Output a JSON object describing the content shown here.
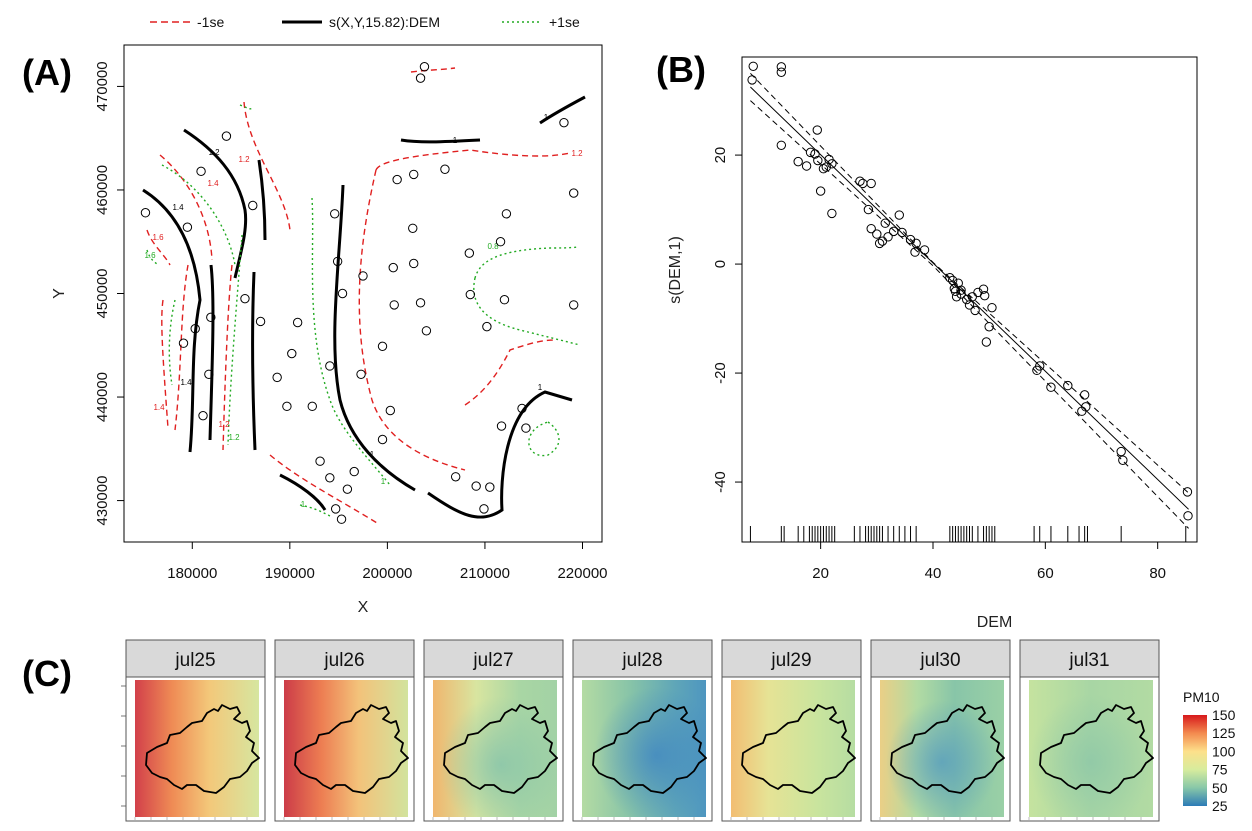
{
  "panels": {
    "a": "(A)",
    "b": "(B)",
    "c": "(C)"
  },
  "legend": [
    {
      "label": "-1se",
      "color": "#e02020",
      "style": "dashed"
    },
    {
      "label": "s(X,Y,15.82):DEM",
      "color": "#000000",
      "style": "solid"
    },
    {
      "label": "+1se",
      "color": "#22aa22",
      "style": "dotted"
    }
  ],
  "chart_data": [
    {
      "type": "scatter",
      "panel": "A",
      "xlabel": "X",
      "ylabel": "Y",
      "xlim": [
        173000,
        222000
      ],
      "ylim": [
        426000,
        474000
      ],
      "xticks": [
        180000,
        190000,
        200000,
        210000,
        220000
      ],
      "yticks": [
        430000,
        440000,
        450000,
        460000,
        470000
      ],
      "xtick_labels": [
        "180000",
        "190000",
        "200000",
        "210000",
        "220000"
      ],
      "ytick_labels": [
        "430000",
        "440000",
        "450000",
        "460000",
        "470000"
      ],
      "contour_labels": [
        "1.2",
        "1.2",
        "1.4",
        "1.4",
        "1.6",
        "1.6",
        "1.4",
        "1.4",
        "1.2",
        "1.2",
        "1",
        "1",
        "1",
        "0.8",
        "1",
        "1.2",
        "1",
        "1"
      ],
      "points": [
        [
          203800,
          471900
        ],
        [
          203400,
          470800
        ],
        [
          183500,
          465200
        ],
        [
          218100,
          466500
        ],
        [
          180900,
          461800
        ],
        [
          186200,
          458500
        ],
        [
          175200,
          457800
        ],
        [
          201000,
          461000
        ],
        [
          202700,
          461500
        ],
        [
          205900,
          462000
        ],
        [
          212200,
          457700
        ],
        [
          219100,
          459700
        ],
        [
          194600,
          457700
        ],
        [
          202600,
          456300
        ],
        [
          179500,
          456400
        ],
        [
          194900,
          453100
        ],
        [
          200600,
          452500
        ],
        [
          202700,
          452900
        ],
        [
          208400,
          453900
        ],
        [
          211600,
          455000
        ],
        [
          197500,
          451700
        ],
        [
          185400,
          449500
        ],
        [
          195400,
          450000
        ],
        [
          203400,
          449100
        ],
        [
          200700,
          448900
        ],
        [
          208500,
          449900
        ],
        [
          212000,
          449400
        ],
        [
          219100,
          448900
        ],
        [
          181900,
          447700
        ],
        [
          190800,
          447200
        ],
        [
          187000,
          447300
        ],
        [
          180300,
          446600
        ],
        [
          204000,
          446400
        ],
        [
          210200,
          446800
        ],
        [
          179100,
          445200
        ],
        [
          190200,
          444200
        ],
        [
          194100,
          443000
        ],
        [
          199500,
          444900
        ],
        [
          181700,
          442200
        ],
        [
          188700,
          441900
        ],
        [
          197300,
          442200
        ],
        [
          189700,
          439100
        ],
        [
          192300,
          439100
        ],
        [
          181100,
          438200
        ],
        [
          200300,
          438700
        ],
        [
          211700,
          437200
        ],
        [
          213800,
          438900
        ],
        [
          214200,
          437000
        ],
        [
          199500,
          435900
        ],
        [
          207000,
          432300
        ],
        [
          193100,
          433800
        ],
        [
          196600,
          432800
        ],
        [
          209100,
          431400
        ],
        [
          210500,
          431300
        ],
        [
          194100,
          432200
        ],
        [
          195900,
          431100
        ],
        [
          194700,
          429200
        ],
        [
          209900,
          429200
        ],
        [
          195300,
          428200
        ]
      ]
    },
    {
      "type": "scatter",
      "panel": "B",
      "xlabel": "DEM",
      "ylabel": "s(DEM,1)",
      "xlim": [
        6,
        87
      ],
      "ylim": [
        -51,
        38
      ],
      "xticks": [
        20,
        40,
        60,
        80
      ],
      "yticks": [
        -40,
        -20,
        0,
        20
      ],
      "xtick_labels": [
        "20",
        "40",
        "60",
        "80"
      ],
      "ytick_labels": [
        "-40",
        "-20",
        "0",
        "20"
      ],
      "fit_line": [
        [
          7.5,
          32.5
        ],
        [
          85.5,
          -45.0
        ]
      ],
      "upper_band": [
        [
          7.5,
          35.0
        ],
        [
          40,
          0.3
        ],
        [
          85.5,
          -42.0
        ]
      ],
      "lower_band": [
        [
          7.5,
          30.0
        ],
        [
          40,
          -0.3
        ],
        [
          85.5,
          -48.5
        ]
      ],
      "rug": [
        7.5,
        13,
        13.5,
        16,
        17,
        18,
        18.5,
        19,
        19.5,
        20,
        20.5,
        21,
        21.5,
        22,
        22.5,
        26,
        27,
        28,
        28.5,
        29,
        29.5,
        30,
        30.5,
        31,
        32,
        33,
        34,
        35,
        36,
        37,
        43,
        43.5,
        44,
        44.5,
        45,
        45.5,
        46,
        46.5,
        47,
        48,
        49,
        49.5,
        50,
        50.5,
        51,
        58,
        59,
        61,
        64,
        66,
        67,
        67.5,
        73.5,
        85
      ],
      "points": [
        [
          8,
          36.3
        ],
        [
          7.8,
          33.8
        ],
        [
          13,
          36.2
        ],
        [
          13,
          35.2
        ],
        [
          13,
          21.8
        ],
        [
          16,
          18.8
        ],
        [
          17.5,
          18
        ],
        [
          18.2,
          20.5
        ],
        [
          19,
          20.2
        ],
        [
          19.4,
          24.6
        ],
        [
          19.5,
          19
        ],
        [
          20,
          13.4
        ],
        [
          20.5,
          17.5
        ],
        [
          21,
          17.8
        ],
        [
          21.5,
          19.2
        ],
        [
          22,
          9.3
        ],
        [
          22,
          18.4
        ],
        [
          27,
          15.2
        ],
        [
          27.5,
          14.8
        ],
        [
          29,
          14.8
        ],
        [
          28.5,
          10
        ],
        [
          29,
          6.5
        ],
        [
          30,
          5.5
        ],
        [
          30.5,
          3.8
        ],
        [
          31,
          4.2
        ],
        [
          31.5,
          7.5
        ],
        [
          32,
          5
        ],
        [
          33,
          6
        ],
        [
          34,
          9
        ],
        [
          34.5,
          5.8
        ],
        [
          36,
          4.5
        ],
        [
          36.8,
          2.2
        ],
        [
          37,
          3.8
        ],
        [
          38.5,
          2.6
        ],
        [
          43,
          -2.5
        ],
        [
          43.5,
          -3
        ],
        [
          43.8,
          -4.5
        ],
        [
          44,
          -5
        ],
        [
          44.2,
          -6
        ],
        [
          44.5,
          -3.5
        ],
        [
          45,
          -4.8
        ],
        [
          45,
          -5.5
        ],
        [
          46,
          -6.5
        ],
        [
          46.5,
          -7.5
        ],
        [
          47,
          -6
        ],
        [
          47.5,
          -8.5
        ],
        [
          48,
          -5.2
        ],
        [
          49,
          -4.6
        ],
        [
          49.2,
          -5.8
        ],
        [
          49.5,
          -14.3
        ],
        [
          50,
          -11.5
        ],
        [
          50.5,
          -8
        ],
        [
          58.5,
          -19.5
        ],
        [
          59,
          -18.7
        ],
        [
          61,
          -22.6
        ],
        [
          64,
          -22.3
        ],
        [
          66.5,
          -27
        ],
        [
          67,
          -24
        ],
        [
          67.2,
          -26.2
        ],
        [
          73.5,
          -34.4
        ],
        [
          73.8,
          -36
        ],
        [
          85.3,
          -41.8
        ],
        [
          85.4,
          -46.2
        ]
      ]
    },
    {
      "type": "heatmap",
      "panel": "C",
      "facets": [
        "jul25",
        "jul26",
        "jul27",
        "jul28",
        "jul29",
        "jul30",
        "jul31"
      ],
      "colorbar": {
        "title": "PM10",
        "ticks": [
          150,
          125,
          100,
          75,
          50,
          25
        ],
        "range": [
          25,
          150
        ]
      }
    }
  ]
}
